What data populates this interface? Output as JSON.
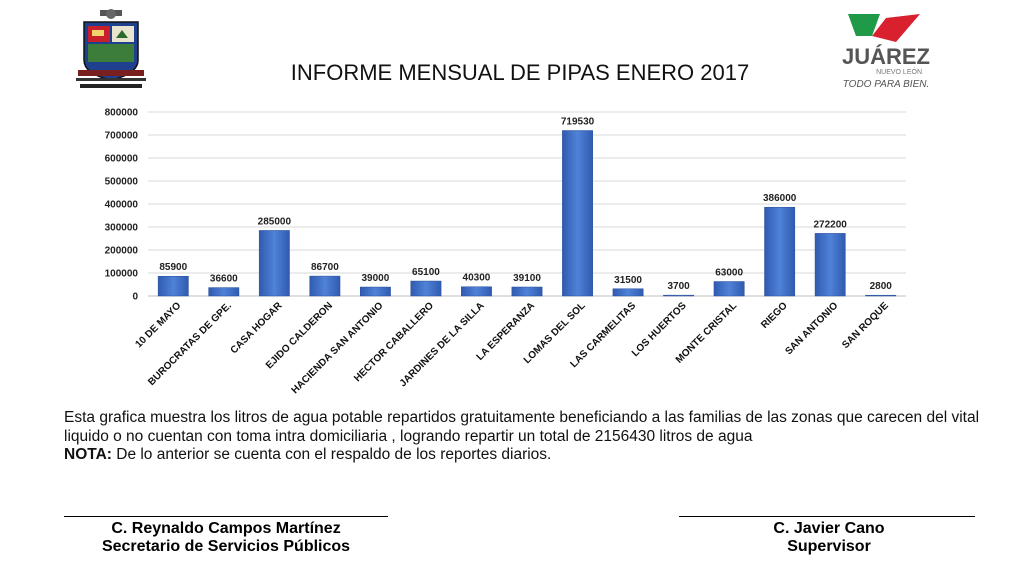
{
  "header": {
    "right_logo": {
      "brand": "JUÁREZ",
      "region": "NUEVO LEÓN",
      "slogan": "TODO PARA BIEN."
    }
  },
  "chart_data": {
    "type": "bar",
    "title": "INFORME MENSUAL DE PIPAS ENERO 2017",
    "categories": [
      "10 DE MAYO",
      "BUROCRATAS DE GPE.",
      "CASA HOGAR",
      "EJIDO CALDERON",
      "HACIENDA SAN ANTONIO",
      "HECTOR CABALLERO",
      "JARDINES DE LA SILLA",
      "LA ESPERANZA",
      "LOMAS DEL SOL",
      "LAS CARMELITAS",
      "LOS HUERTOS",
      "MONTE CRISTAL",
      "RIEGO",
      "SAN ANTONIO",
      "SAN ROQUE"
    ],
    "values": [
      85900,
      36600,
      285000,
      86700,
      39000,
      65100,
      40300,
      39100,
      719530,
      31500,
      3700,
      63000,
      386000,
      272200,
      2800
    ],
    "ylim": [
      0,
      800000
    ],
    "yticks": [
      "800000",
      "700000",
      "600000",
      "500000",
      "400000",
      "300000",
      "200000",
      "100000",
      "0"
    ],
    "grid": true,
    "xlabel": "",
    "ylabel": "",
    "bar_color": "#3f6fc6"
  },
  "description": {
    "text": "Esta grafica muestra los litros de agua potable repartidos gratuitamente beneficiando a las familias de las zonas que carecen del vital liquido o no cuentan con toma intra  domiciliaria , logrando repartir un total de 2156430 litros de agua",
    "note_label": "NOTA:",
    "note_text": " De lo anterior se cuenta con el respaldo de los reportes diarios."
  },
  "signatures": [
    {
      "name": "C. Reynaldo Campos Martínez",
      "role": "Secretario de Servicios Públicos"
    },
    {
      "name": "C. Javier Cano",
      "role": "Supervisor"
    }
  ]
}
